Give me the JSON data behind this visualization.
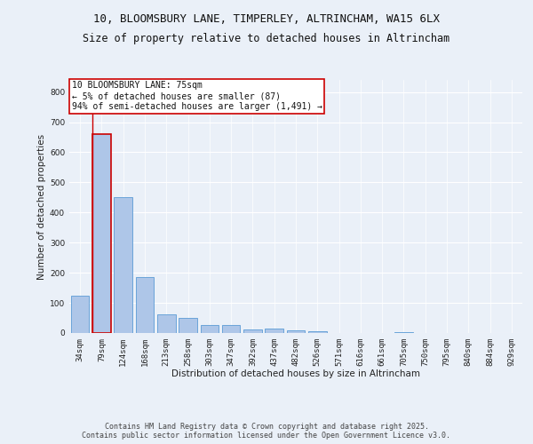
{
  "title_line1": "10, BLOOMSBURY LANE, TIMPERLEY, ALTRINCHAM, WA15 6LX",
  "title_line2": "Size of property relative to detached houses in Altrincham",
  "xlabel": "Distribution of detached houses by size in Altrincham",
  "ylabel": "Number of detached properties",
  "categories": [
    "34sqm",
    "79sqm",
    "124sqm",
    "168sqm",
    "213sqm",
    "258sqm",
    "303sqm",
    "347sqm",
    "392sqm",
    "437sqm",
    "482sqm",
    "526sqm",
    "571sqm",
    "616sqm",
    "661sqm",
    "705sqm",
    "750sqm",
    "795sqm",
    "840sqm",
    "884sqm",
    "929sqm"
  ],
  "values": [
    125,
    660,
    450,
    185,
    63,
    50,
    27,
    27,
    13,
    15,
    10,
    5,
    0,
    0,
    0,
    4,
    0,
    0,
    0,
    0,
    0
  ],
  "bar_color": "#aec6e8",
  "bar_edge_color": "#5b9bd5",
  "highlight_bar_index": 1,
  "highlight_edge_color": "#cc0000",
  "annotation_box_text": "10 BLOOMSBURY LANE: 75sqm\n← 5% of detached houses are smaller (87)\n94% of semi-detached houses are larger (1,491) →",
  "ylim": [
    0,
    840
  ],
  "yticks": [
    0,
    100,
    200,
    300,
    400,
    500,
    600,
    700,
    800
  ],
  "bg_color": "#eaf0f8",
  "plot_bg_color": "#eaf0f8",
  "grid_color": "#ffffff",
  "footer_text": "Contains HM Land Registry data © Crown copyright and database right 2025.\nContains public sector information licensed under the Open Government Licence v3.0.",
  "title_fontsize": 9,
  "subtitle_fontsize": 8.5,
  "axis_label_fontsize": 7.5,
  "tick_fontsize": 6.5,
  "annotation_fontsize": 7
}
